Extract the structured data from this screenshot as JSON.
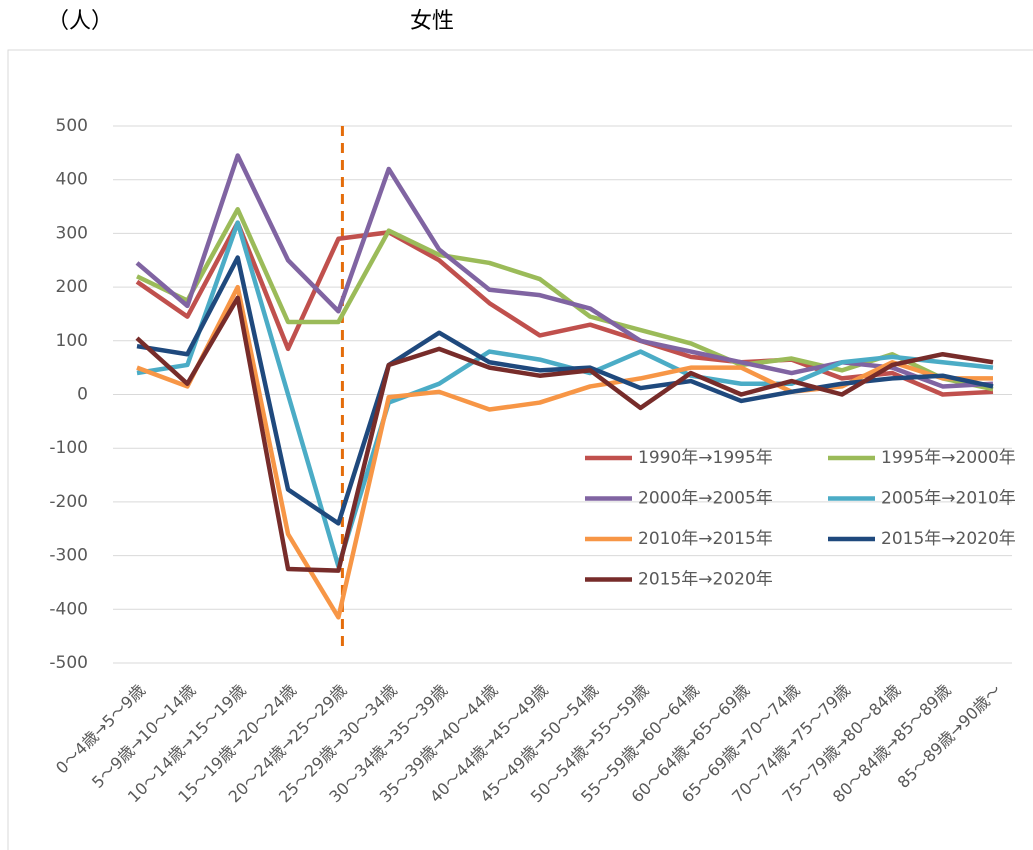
{
  "chart_data": {
    "type": "line",
    "title": "女性",
    "y_label": "（人）",
    "categories": [
      "0～4歳→5～9歳",
      "5～9歳→10～14歳",
      "10～14歳→15～19歳",
      "15～19歳→20～24歳",
      "20～24歳→25～29歳",
      "25～29歳→30～34歳",
      "30～34歳→35～39歳",
      "35～39歳→40～44歳",
      "40～44歳→45～49歳",
      "45～49歳→50～54歳",
      "50～54歳→55～59歳",
      "55～59歳→60～64歳",
      "60～64歳→65～69歳",
      "65～69歳→70～74歳",
      "70～74歳→75～79歳",
      "75～79歳→80～84歳",
      "80～84歳→85～89歳",
      "85～89歳→90歳～"
    ],
    "series": [
      {
        "name": "1990年→1995年",
        "color": "#c0504d",
        "values": [
          210,
          145,
          320,
          85,
          290,
          302,
          250,
          170,
          110,
          130,
          100,
          70,
          60,
          65,
          30,
          40,
          0,
          5
        ]
      },
      {
        "name": "1995年→2000年",
        "color": "#9bbb59",
        "values": [
          220,
          175,
          345,
          135,
          135,
          305,
          260,
          245,
          215,
          145,
          120,
          95,
          55,
          67,
          45,
          75,
          30,
          10
        ]
      },
      {
        "name": "2000年→2005年",
        "color": "#8064a2",
        "values": [
          245,
          165,
          445,
          250,
          155,
          420,
          270,
          195,
          185,
          160,
          100,
          80,
          60,
          40,
          60,
          50,
          15,
          20
        ]
      },
      {
        "name": "2005年→2010年",
        "color": "#4bacc6",
        "values": [
          40,
          55,
          320,
          0,
          -320,
          -15,
          20,
          80,
          65,
          40,
          80,
          35,
          20,
          20,
          60,
          70,
          60,
          50
        ]
      },
      {
        "name": "2010年→2015年",
        "color": "#f79646",
        "values": [
          50,
          15,
          200,
          -260,
          -415,
          -5,
          5,
          -28,
          -15,
          15,
          30,
          50,
          50,
          5,
          15,
          60,
          30,
          30
        ]
      },
      {
        "name": "2015年→2020年",
        "color": "#1f497d",
        "values": [
          90,
          75,
          255,
          -177,
          -240,
          55,
          115,
          60,
          45,
          50,
          12,
          25,
          -12,
          5,
          20,
          30,
          35,
          15
        ]
      },
      {
        "name": "2015年→2020年",
        "color": "#772c2a",
        "values": [
          105,
          20,
          180,
          -325,
          -328,
          55,
          85,
          50,
          35,
          45,
          -25,
          40,
          0,
          25,
          0,
          55,
          75,
          60
        ]
      }
    ],
    "ylim": [
      -500,
      500
    ],
    "yticks": [
      -500,
      -400,
      -300,
      -200,
      -100,
      0,
      100,
      200,
      300,
      400,
      500
    ],
    "grid": true,
    "reference_line": {
      "category": "20～24歳→25～29歳",
      "color": "#e46c0a",
      "style": "dashed"
    }
  }
}
